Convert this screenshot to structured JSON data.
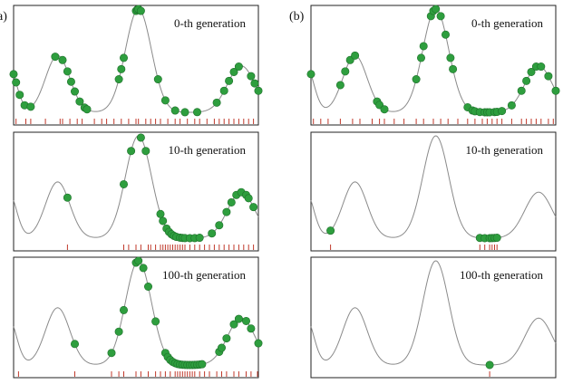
{
  "figure": {
    "panel_labels": [
      "a)",
      "(b)"
    ]
  },
  "chart_data": [
    {
      "type": "scatter",
      "column": "a",
      "title": "0-th generation",
      "series": [
        {
          "x": [
            0.0,
            0.01,
            0.025,
            0.045,
            0.07,
            0.17,
            0.2,
            0.22,
            0.235,
            0.25,
            0.27,
            0.29,
            0.3,
            0.43,
            0.44,
            0.45,
            0.5,
            0.505,
            0.51,
            0.52,
            0.59,
            0.62,
            0.66,
            0.7,
            0.75,
            0.83,
            0.86,
            0.88,
            0.9,
            0.92,
            0.97,
            0.985,
            1.0
          ]
        }
      ],
      "rug_x": [
        0.01,
        0.05,
        0.07,
        0.13,
        0.19,
        0.2,
        0.23,
        0.26,
        0.28,
        0.33,
        0.36,
        0.38,
        0.41,
        0.44,
        0.47,
        0.5,
        0.51,
        0.54,
        0.56,
        0.58,
        0.6,
        0.63,
        0.66,
        0.68,
        0.71,
        0.74,
        0.76,
        0.79,
        0.82,
        0.84,
        0.86,
        0.88,
        0.9,
        0.92,
        0.94,
        0.96,
        0.98
      ]
    },
    {
      "type": "scatter",
      "column": "a",
      "title": "10-th generation",
      "series": [
        {
          "x": [
            0.22,
            0.45,
            0.48,
            0.52,
            0.54,
            0.6,
            0.61,
            0.625,
            0.635,
            0.645,
            0.655,
            0.665,
            0.68,
            0.69,
            0.7,
            0.72,
            0.74,
            0.76,
            0.81,
            0.84,
            0.87,
            0.89,
            0.91,
            0.93,
            0.95,
            0.96,
            0.98
          ]
        }
      ],
      "rug_x": [
        0.22,
        0.45,
        0.47,
        0.5,
        0.52,
        0.55,
        0.56,
        0.58,
        0.6,
        0.61,
        0.62,
        0.63,
        0.64,
        0.65,
        0.66,
        0.67,
        0.68,
        0.69,
        0.7,
        0.72,
        0.74,
        0.76,
        0.78,
        0.8,
        0.82,
        0.84,
        0.86,
        0.88,
        0.9,
        0.92,
        0.94,
        0.96,
        0.98
      ]
    },
    {
      "type": "scatter",
      "column": "a",
      "title": "100-th generation",
      "series": [
        {
          "x": [
            0.25,
            0.4,
            0.43,
            0.45,
            0.5,
            0.51,
            0.53,
            0.55,
            0.58,
            0.62,
            0.63,
            0.64,
            0.65,
            0.66,
            0.67,
            0.68,
            0.69,
            0.7,
            0.71,
            0.72,
            0.73,
            0.74,
            0.75,
            0.76,
            0.77,
            0.84,
            0.85,
            0.87,
            0.9,
            0.92,
            0.95,
            0.97,
            1.0
          ]
        }
      ],
      "rug_x": [
        0.02,
        0.25,
        0.4,
        0.43,
        0.45,
        0.5,
        0.52,
        0.55,
        0.58,
        0.6,
        0.62,
        0.64,
        0.66,
        0.67,
        0.68,
        0.69,
        0.7,
        0.71,
        0.72,
        0.73,
        0.74,
        0.76,
        0.78,
        0.8,
        0.83,
        0.85,
        0.87,
        0.9,
        0.92,
        0.95,
        0.97,
        1.0
      ]
    },
    {
      "type": "scatter",
      "column": "b",
      "title": "0-th generation",
      "series": [
        {
          "x": [
            0.0,
            0.12,
            0.14,
            0.16,
            0.18,
            0.27,
            0.28,
            0.3,
            0.43,
            0.45,
            0.46,
            0.49,
            0.5,
            0.51,
            0.53,
            0.55,
            0.57,
            0.58,
            0.64,
            0.66,
            0.67,
            0.69,
            0.71,
            0.72,
            0.73,
            0.75,
            0.76,
            0.78,
            0.82,
            0.86,
            0.88,
            0.9,
            0.92,
            0.94,
            0.97,
            1.0
          ]
        }
      ],
      "rug_x": [
        0.01,
        0.04,
        0.07,
        0.12,
        0.17,
        0.2,
        0.25,
        0.28,
        0.3,
        0.34,
        0.38,
        0.43,
        0.46,
        0.5,
        0.53,
        0.56,
        0.6,
        0.64,
        0.67,
        0.7,
        0.72,
        0.74,
        0.76,
        0.78,
        0.82,
        0.86,
        0.88,
        0.9,
        0.92,
        0.94,
        0.97,
        0.99
      ]
    },
    {
      "type": "scatter",
      "column": "b",
      "title": "10-th generation",
      "series": [
        {
          "x": [
            0.08,
            0.69,
            0.71,
            0.73,
            0.74,
            0.75,
            0.76
          ]
        }
      ],
      "rug_x": [
        0.08,
        0.69,
        0.71,
        0.73,
        0.74,
        0.75,
        0.76
      ]
    },
    {
      "type": "scatter",
      "column": "b",
      "title": "100-th generation",
      "series": [
        {
          "x": [
            0.73
          ]
        }
      ],
      "rug_x": [
        0.73
      ]
    }
  ]
}
